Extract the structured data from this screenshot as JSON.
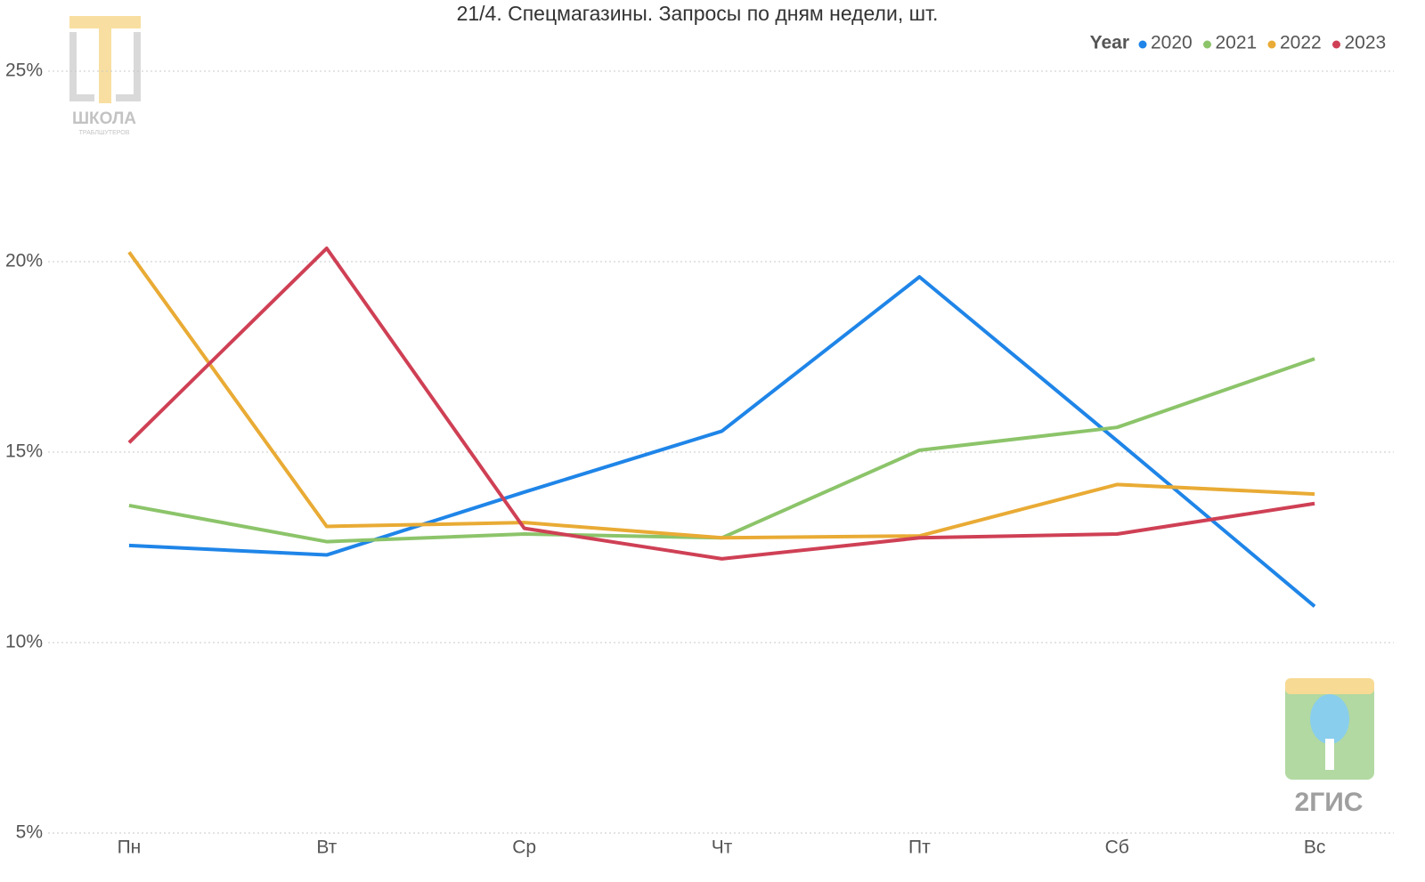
{
  "chart_data": {
    "type": "line",
    "title": "21/4. Спецмагазины. Запросы по дням недели, шт.",
    "categories": [
      "Пн",
      "Вт",
      "Ср",
      "Чт",
      "Пт",
      "Сб",
      "Вс"
    ],
    "legend_title": "Year",
    "legend_position": "top-right",
    "series": [
      {
        "name": "2020",
        "color": "#1f85e8",
        "values": [
          12.55,
          12.3,
          13.95,
          15.55,
          19.6,
          15.3,
          10.95
        ]
      },
      {
        "name": "2021",
        "color": "#8cc46a",
        "values": [
          13.6,
          12.65,
          12.85,
          12.75,
          15.05,
          15.65,
          17.45
        ]
      },
      {
        "name": "2022",
        "color": "#e9ab35",
        "values": [
          20.25,
          13.05,
          13.15,
          12.75,
          12.8,
          14.15,
          13.9
        ]
      },
      {
        "name": "2023",
        "color": "#cf4055",
        "values": [
          15.25,
          20.35,
          13.0,
          12.2,
          12.75,
          12.85,
          13.65
        ]
      }
    ],
    "ylim": [
      5,
      25
    ],
    "yticks": [
      {
        "value": 5,
        "label": "5%"
      },
      {
        "value": 10,
        "label": "10%"
      },
      {
        "value": 15,
        "label": "15%"
      },
      {
        "value": 20,
        "label": "20%"
      },
      {
        "value": 25,
        "label": "25%"
      }
    ],
    "grid": true
  },
  "logos": {
    "school": "ШКОЛА",
    "school_sub": "ТРАБЛШУТЕРОВ",
    "brand": "2ГИС"
  }
}
